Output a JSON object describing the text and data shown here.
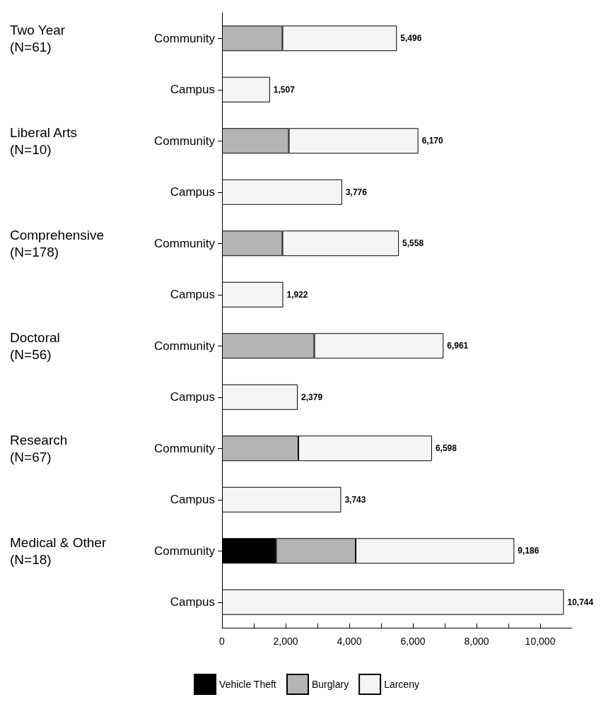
{
  "chart_data": {
    "type": "bar",
    "orientation": "horizontal",
    "stacked": true,
    "categories": [
      "Community",
      "Campus",
      "Community",
      "Campus",
      "Community",
      "Campus",
      "Community",
      "Campus",
      "Community",
      "Campus",
      "Community",
      "Campus"
    ],
    "series": [
      {
        "name": "Vehicle Theft",
        "color": "#000000",
        "values": [
          null,
          null,
          null,
          null,
          null,
          null,
          null,
          null,
          null,
          null,
          1700,
          null
        ]
      },
      {
        "name": "Burglary",
        "color": "#b4b4b4",
        "values": [
          1900,
          null,
          2100,
          null,
          1900,
          null,
          2900,
          null,
          2400,
          null,
          2500,
          null
        ]
      },
      {
        "name": "Larceny",
        "color": "#f5f5f5",
        "values": [
          3596,
          1507,
          4070,
          3776,
          3658,
          1922,
          4061,
          2379,
          4198,
          3743,
          4986,
          10744
        ]
      }
    ],
    "totals": [
      "5,496",
      "1,507",
      "6,170",
      "3,776",
      "5,558",
      "1,922",
      "6,961",
      "2,379",
      "6,598",
      "3,743",
      "9,186",
      "10,744"
    ],
    "annotations": [
      "Two Year (N=61)",
      "Liberal Arts (N=10)",
      "Comprehensive (N=178)",
      "Doctoral (N=56)",
      "Research (N=67)",
      "Medical & Other (N=18)"
    ],
    "xlim": [
      0,
      11000
    ],
    "xticks": [
      0,
      {
        "value": 1000,
        "label": null
      },
      {
        "value": 2000,
        "label": "2,000"
      },
      {
        "value": 3000,
        "label": null
      },
      {
        "value": 4000,
        "label": "4,000"
      },
      {
        "value": 5000,
        "label": null
      },
      {
        "value": 6000,
        "label": "6,000"
      },
      {
        "value": 7000,
        "label": null
      },
      {
        "value": 8000,
        "label": "8,000"
      },
      {
        "value": 9000,
        "label": null
      },
      {
        "value": 10000,
        "label": "10,000"
      }
    ],
    "grid": false,
    "legend": "bottom"
  }
}
